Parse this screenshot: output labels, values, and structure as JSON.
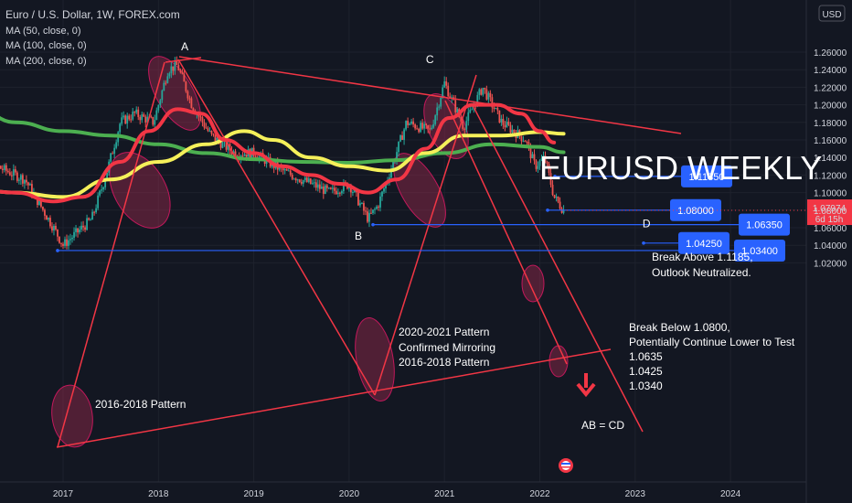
{
  "header": {
    "title": "Euro / U.S. Dollar, 1W, FOREX.com",
    "ma_labels": [
      "MA (50, close, 0)",
      "MA (100, close, 0)",
      "MA (200, close, 0)"
    ],
    "currency_button": "USD"
  },
  "chart_data": {
    "type": "candlestick",
    "title": "EURUSD WEEKLY",
    "x_ticks": [
      "2017",
      "2018",
      "2019",
      "2020",
      "2021",
      "2022",
      "2023",
      "2024"
    ],
    "y_ticks": [
      "1.26000",
      "1.24000",
      "1.22000",
      "1.20000",
      "1.18000",
      "1.16000",
      "1.14000",
      "1.12000",
      "1.10000",
      "1.08000",
      "1.06000",
      "1.04000",
      "1.02000"
    ],
    "ylim": [
      1.015,
      1.27
    ],
    "price_path": [
      [
        2016.0,
        1.08
      ],
      [
        2016.3,
        1.13
      ],
      [
        2016.6,
        1.115
      ],
      [
        2016.9,
        1.06
      ],
      [
        2017.0,
        1.04
      ],
      [
        2017.3,
        1.07
      ],
      [
        2017.45,
        1.12
      ],
      [
        2017.6,
        1.18
      ],
      [
        2017.75,
        1.19
      ],
      [
        2017.95,
        1.18
      ],
      [
        2018.1,
        1.24
      ],
      [
        2018.2,
        1.245
      ],
      [
        2018.35,
        1.2
      ],
      [
        2018.55,
        1.165
      ],
      [
        2018.8,
        1.145
      ],
      [
        2019.0,
        1.145
      ],
      [
        2019.3,
        1.125
      ],
      [
        2019.6,
        1.11
      ],
      [
        2019.8,
        1.1
      ],
      [
        2020.0,
        1.11
      ],
      [
        2020.2,
        1.07
      ],
      [
        2020.3,
        1.085
      ],
      [
        2020.45,
        1.13
      ],
      [
        2020.6,
        1.18
      ],
      [
        2020.85,
        1.17
      ],
      [
        2021.0,
        1.225
      ],
      [
        2021.2,
        1.175
      ],
      [
        2021.4,
        1.22
      ],
      [
        2021.6,
        1.18
      ],
      [
        2021.85,
        1.16
      ],
      [
        2021.95,
        1.13
      ],
      [
        2022.05,
        1.14
      ],
      [
        2022.15,
        1.095
      ],
      [
        2022.25,
        1.0797
      ]
    ],
    "moving_averages": [
      {
        "name": "MA (50, close, 0)",
        "color": "#f23645",
        "points": [
          [
            2016.0,
            1.105
          ],
          [
            2016.5,
            1.1
          ],
          [
            2016.9,
            1.09
          ],
          [
            2017.2,
            1.095
          ],
          [
            2017.6,
            1.135
          ],
          [
            2017.9,
            1.17
          ],
          [
            2018.2,
            1.195
          ],
          [
            2018.45,
            1.19
          ],
          [
            2018.7,
            1.16
          ],
          [
            2019.0,
            1.145
          ],
          [
            2019.3,
            1.13
          ],
          [
            2019.6,
            1.12
          ],
          [
            2019.9,
            1.11
          ],
          [
            2020.2,
            1.1
          ],
          [
            2020.5,
            1.115
          ],
          [
            2020.8,
            1.15
          ],
          [
            2021.05,
            1.185
          ],
          [
            2021.3,
            1.2
          ],
          [
            2021.55,
            1.2
          ],
          [
            2021.8,
            1.19
          ],
          [
            2022.0,
            1.17
          ],
          [
            2022.15,
            1.157
          ]
        ]
      },
      {
        "name": "MA (100, close, 0)",
        "color": "#f5f05a",
        "points": [
          [
            2016.0,
            1.105
          ],
          [
            2016.5,
            1.1
          ],
          [
            2017.0,
            1.095
          ],
          [
            2017.5,
            1.115
          ],
          [
            2018.0,
            1.135
          ],
          [
            2018.5,
            1.155
          ],
          [
            2018.9,
            1.17
          ],
          [
            2019.2,
            1.16
          ],
          [
            2019.6,
            1.14
          ],
          [
            2020.0,
            1.13
          ],
          [
            2020.4,
            1.125
          ],
          [
            2020.8,
            1.145
          ],
          [
            2021.2,
            1.165
          ],
          [
            2021.6,
            1.165
          ],
          [
            2022.0,
            1.169
          ],
          [
            2022.25,
            1.167
          ]
        ]
      },
      {
        "name": "MA (200, close, 0)",
        "color": "#4caf50",
        "points": [
          [
            2015.5,
            1.24
          ],
          [
            2016.0,
            1.205
          ],
          [
            2016.5,
            1.18
          ],
          [
            2017.0,
            1.17
          ],
          [
            2017.5,
            1.165
          ],
          [
            2018.0,
            1.155
          ],
          [
            2018.5,
            1.145
          ],
          [
            2019.0,
            1.138
          ],
          [
            2019.5,
            1.135
          ],
          [
            2020.0,
            1.134
          ],
          [
            2020.5,
            1.137
          ],
          [
            2021.0,
            1.145
          ],
          [
            2021.5,
            1.155
          ],
          [
            2022.0,
            1.152
          ],
          [
            2022.25,
            1.146
          ]
        ]
      }
    ],
    "pattern_points": [
      {
        "label": "A",
        "x": 2018.2,
        "y": 1.255
      },
      {
        "label": "C",
        "x": 2021.0,
        "y": 1.235
      },
      {
        "label": "B",
        "x": 2020.25,
        "y": 1.061
      },
      {
        "label": "D",
        "x": 2023.1,
        "y": 1.052
      }
    ],
    "horizontal_levels": [
      {
        "value": 1.1185,
        "label": "1.11850"
      },
      {
        "value": 1.08,
        "label": "1.08000"
      },
      {
        "value": 1.0635,
        "label": "1.06350"
      },
      {
        "value": 1.0425,
        "label": "1.04250"
      },
      {
        "value": 1.034,
        "label": "1.03400"
      }
    ],
    "current_price": {
      "value": 1.07974,
      "label": "1.07974",
      "countdown": "6d 15h"
    },
    "annotations": {
      "big_title": "EURUSD WEEKLY",
      "break_above": [
        "Break Above 1.1185,",
        "Outlook Neutralized."
      ],
      "break_below": [
        "Break Below 1.0800,",
        "Potentially Continue Lower to Test",
        "1.0635",
        "1.0425",
        "1.0340"
      ],
      "pattern_2016": "2016-2018 Pattern",
      "pattern_2020": [
        "2020-2021 Pattern",
        "Confirmed Mirroring",
        "2016-2018 Pattern"
      ],
      "ab_cd": "AB = CD"
    },
    "colors": {
      "background": "#131722",
      "trendline": "#f23645",
      "level_line": "#2962ff",
      "label_box": "#2962ff",
      "ellipse_fill": "#9c2a4e",
      "ellipse_stroke": "#c2185b",
      "bull": "#26a69a",
      "bear": "#ef5350"
    }
  }
}
